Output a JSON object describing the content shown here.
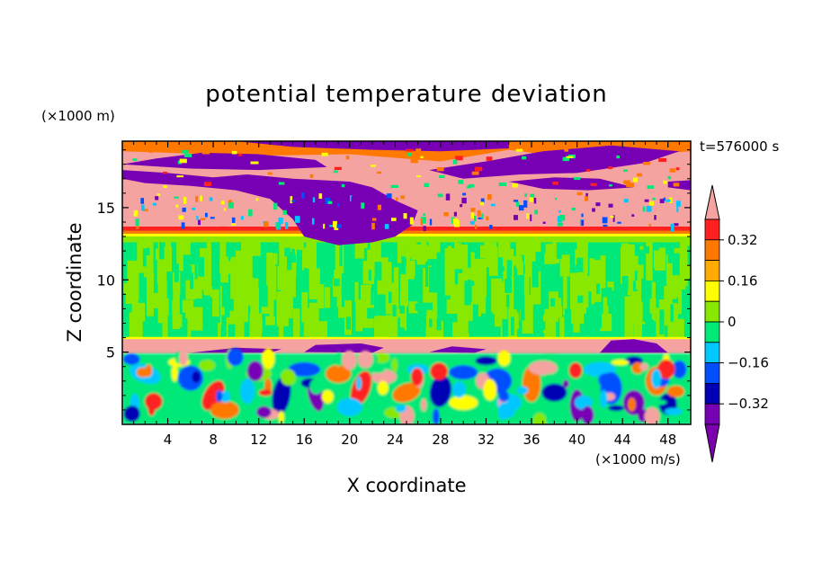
{
  "chart_data": {
    "type": "heatmap",
    "title": "potential temperature deviation",
    "xlabel": "X coordinate",
    "ylabel": "Z coordinate",
    "x_unit": "(×1000 m/s)",
    "y_unit": "(×1000 m)",
    "time_label": "t=576000 s",
    "x_ticks": [
      4,
      8,
      12,
      16,
      20,
      24,
      28,
      32,
      36,
      40,
      44,
      48
    ],
    "y_ticks": [
      5,
      10,
      15
    ],
    "xlim": [
      0,
      50
    ],
    "ylim": [
      0,
      19.6
    ],
    "colorbar": {
      "labels": [
        "0.32",
        "0.16",
        "0",
        "-0.16",
        "-0.32"
      ],
      "label_values": [
        0.32,
        0.16,
        0,
        -0.16,
        -0.32
      ],
      "levels": [
        0.4,
        0.32,
        0.24,
        0.16,
        0.08,
        0,
        -0.08,
        -0.16,
        -0.24,
        -0.32,
        -0.4
      ],
      "colors": [
        "#f4a3a0",
        "#ff2020",
        "#ff7800",
        "#ffaa00",
        "#ffff00",
        "#88e800",
        "#00e878",
        "#00c8ff",
        "#0050ff",
        "#0000b4",
        "#7800b4",
        "#7d00af"
      ]
    },
    "regions": {
      "stratosphere": {
        "z": [
          13.6,
          19.6
        ],
        "value_range": [
          -0.4,
          0.4
        ],
        "note": "mostly pink with large purple areas"
      },
      "upper_troposphere": {
        "z": [
          6.0,
          13.6
        ],
        "value_range": [
          -0.08,
          0.08
        ],
        "note": "mostly green and light green"
      },
      "thin_layer": {
        "z": [
          4.9,
          6.0
        ],
        "value_range": [
          -0.4,
          0.4
        ],
        "note": "pink band with purple patches"
      },
      "boundary_layer": {
        "z": [
          0,
          4.9
        ],
        "value_range": [
          -0.4,
          0.4
        ],
        "note": "turbulent mixed colors"
      }
    }
  }
}
